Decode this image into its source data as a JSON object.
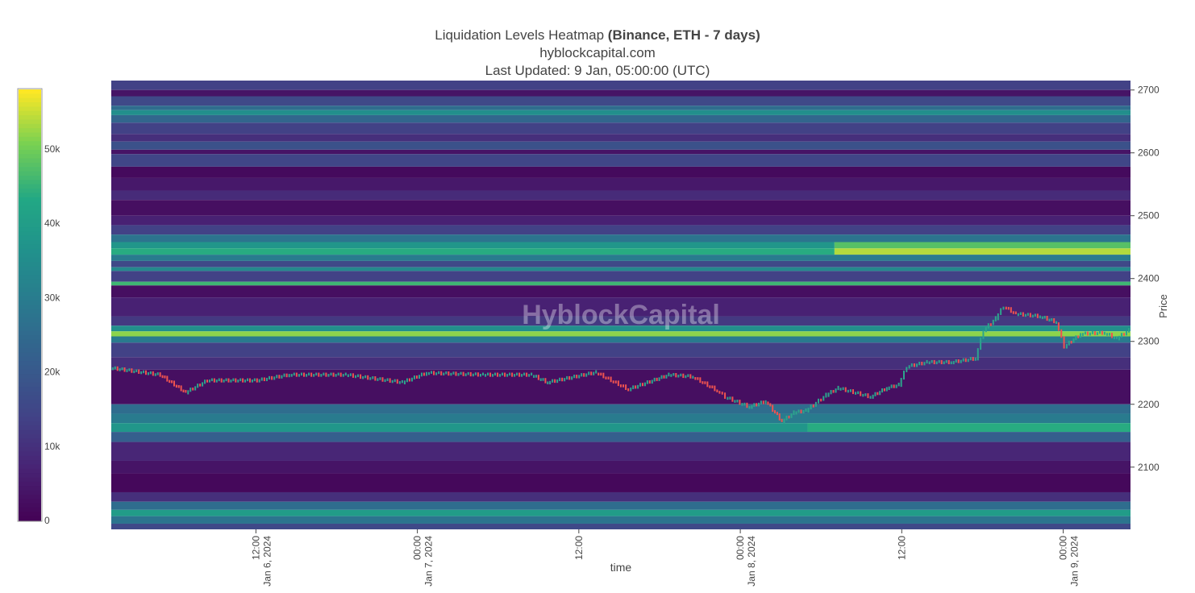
{
  "chart_data": {
    "type": "heatmap",
    "title": "Liquidation Levels Heatmap",
    "title_bold": "(Binance, ETH - 7 days)",
    "subtitle": "hyblockcapital.com",
    "updated": "Last Updated: 9 Jan, 05:00:00 (UTC)",
    "watermark": "HyblockCapital",
    "xlabel": "time",
    "ylabel": "Price",
    "x_unit": "hours since Jan 6 2024 00:00 UTC",
    "xlim": [
      1.25,
      77
    ],
    "ylim": [
      2001,
      2715
    ],
    "x_ticks": [
      {
        "h": 12,
        "line1": "12:00",
        "line2": "Jan 6, 2024"
      },
      {
        "h": 24,
        "line1": "00:00",
        "line2": "Jan 7, 2024"
      },
      {
        "h": 36,
        "line1": "12:00",
        "line2": ""
      },
      {
        "h": 48,
        "line1": "00:00",
        "line2": "Jan 8, 2024"
      },
      {
        "h": 60,
        "line1": "12:00",
        "line2": ""
      },
      {
        "h": 72,
        "line1": "00:00",
        "line2": "Jan 9, 2024"
      }
    ],
    "y_ticks": [
      2100,
      2200,
      2300,
      2400,
      2500,
      2600,
      2700
    ],
    "colorbar": {
      "min": 0,
      "max": 58000,
      "ticks": [
        {
          "v": 0,
          "label": "0"
        },
        {
          "v": 10000,
          "label": "10k"
        },
        {
          "v": 20000,
          "label": "20k"
        },
        {
          "v": 30000,
          "label": "30k"
        },
        {
          "v": 40000,
          "label": "40k"
        },
        {
          "v": 50000,
          "label": "50k"
        }
      ]
    },
    "bands": [
      {
        "lo": 2700,
        "hi": 2715,
        "v": 14000
      },
      {
        "lo": 2690,
        "hi": 2700,
        "v": 4000
      },
      {
        "lo": 2675,
        "hi": 2690,
        "v": 16000
      },
      {
        "lo": 2668,
        "hi": 2675,
        "v": 26000
      },
      {
        "lo": 2660,
        "hi": 2668,
        "v": 36000
      },
      {
        "lo": 2648,
        "hi": 2660,
        "v": 24000
      },
      {
        "lo": 2630,
        "hi": 2648,
        "v": 14000
      },
      {
        "lo": 2618,
        "hi": 2630,
        "v": 10000
      },
      {
        "lo": 2605,
        "hi": 2618,
        "v": 18000
      },
      {
        "lo": 2598,
        "hi": 2605,
        "v": 4000
      },
      {
        "lo": 2578,
        "hi": 2598,
        "v": 15000
      },
      {
        "lo": 2560,
        "hi": 2578,
        "v": 2000
      },
      {
        "lo": 2540,
        "hi": 2560,
        "v": 5000
      },
      {
        "lo": 2525,
        "hi": 2540,
        "v": 9000
      },
      {
        "lo": 2500,
        "hi": 2525,
        "v": 3000
      },
      {
        "lo": 2485,
        "hi": 2500,
        "v": 7000
      },
      {
        "lo": 2470,
        "hi": 2485,
        "v": 14000
      },
      {
        "lo": 2458,
        "hi": 2470,
        "v": 28000
      },
      {
        "lo": 2448,
        "hi": 2458,
        "v": 38000,
        "late_v": 48000,
        "from_h": 55
      },
      {
        "lo": 2438,
        "hi": 2448,
        "v": 44000,
        "late_v": 54000,
        "from_h": 55
      },
      {
        "lo": 2428,
        "hi": 2438,
        "v": 30000
      },
      {
        "lo": 2418,
        "hi": 2428,
        "v": 16000
      },
      {
        "lo": 2412,
        "hi": 2418,
        "v": 34000
      },
      {
        "lo": 2395,
        "hi": 2412,
        "v": 14000
      },
      {
        "lo": 2389,
        "hi": 2395,
        "v": 46000
      },
      {
        "lo": 2370,
        "hi": 2389,
        "v": 3000
      },
      {
        "lo": 2340,
        "hi": 2370,
        "v": 7000
      },
      {
        "lo": 2325,
        "hi": 2340,
        "v": 12000
      },
      {
        "lo": 2316,
        "hi": 2325,
        "v": 36000
      },
      {
        "lo": 2308,
        "hi": 2316,
        "v": 52000
      },
      {
        "lo": 2298,
        "hi": 2308,
        "v": 30000
      },
      {
        "lo": 2275,
        "hi": 2298,
        "v": 14000
      },
      {
        "lo": 2255,
        "hi": 2275,
        "v": 10000
      },
      {
        "lo": 2200,
        "hi": 2255,
        "v": 3000
      },
      {
        "lo": 2185,
        "hi": 2200,
        "v": 26000
      },
      {
        "lo": 2170,
        "hi": 2185,
        "v": 30000
      },
      {
        "lo": 2156,
        "hi": 2170,
        "v": 38000,
        "late_v": 44000,
        "from_h": 53
      },
      {
        "lo": 2140,
        "hi": 2156,
        "v": 22000
      },
      {
        "lo": 2110,
        "hi": 2140,
        "v": 8000
      },
      {
        "lo": 2090,
        "hi": 2110,
        "v": 4000
      },
      {
        "lo": 2060,
        "hi": 2090,
        "v": 1500
      },
      {
        "lo": 2045,
        "hi": 2060,
        "v": 10000
      },
      {
        "lo": 2032,
        "hi": 2045,
        "v": 26000
      },
      {
        "lo": 2022,
        "hi": 2032,
        "v": 40000
      },
      {
        "lo": 2010,
        "hi": 2022,
        "v": 28000
      },
      {
        "lo": 2001,
        "hi": 2010,
        "v": 16000
      }
    ],
    "price_series": {
      "name": "ETH price",
      "h": [
        1.3,
        5,
        6.9,
        8.5,
        12.2,
        14.6,
        18.8,
        23,
        24.8,
        29,
        32.6,
        33.8,
        37.4,
        39.8,
        42.8,
        44.6,
        46.4,
        47,
        48.8,
        50,
        51.2,
        52.1,
        53,
        54.5,
        55.4,
        57.8,
        59,
        59.9,
        60.5,
        62,
        63.8,
        65.6,
        66.2,
        67.1,
        67.7,
        68.6,
        70.4,
        71.6,
        72.2,
        73.4,
        75.2,
        76.1,
        77
      ],
      "price": [
        2258,
        2247,
        2219,
        2238,
        2238,
        2247,
        2247,
        2235,
        2250,
        2247,
        2247,
        2235,
        2251,
        2224,
        2247,
        2244,
        2222,
        2212,
        2196,
        2205,
        2173,
        2187,
        2190,
        2215,
        2226,
        2212,
        2226,
        2231,
        2260,
        2267,
        2267,
        2273,
        2318,
        2337,
        2356,
        2344,
        2340,
        2331,
        2292,
        2312,
        2314,
        2305,
        2318
      ]
    },
    "colors": {
      "up": "#2ca58d",
      "down": "#ef5350"
    }
  }
}
